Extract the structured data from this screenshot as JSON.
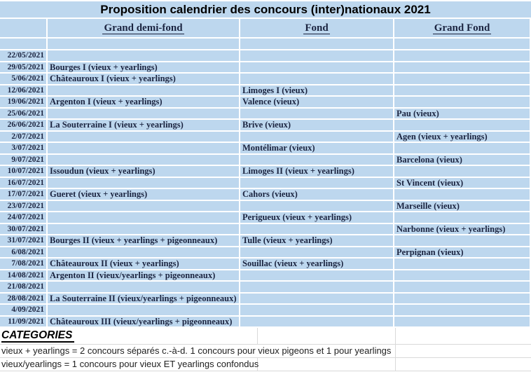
{
  "title": "Proposition calendrier des concours (inter)nationaux 2021",
  "columns": {
    "date": "",
    "demi_fond": "Grand demi-fond",
    "fond": "Fond ",
    "grand_fond": "Grand Fond"
  },
  "rows": [
    {
      "date": "22/05/2021",
      "demi_fond": "",
      "fond": "",
      "grand_fond": ""
    },
    {
      "date": "29/05/2021",
      "demi_fond": "Bourges I (vieux + yearlings)",
      "fond": "",
      "grand_fond": ""
    },
    {
      "date": "5/06/2021",
      "demi_fond": "Châteauroux I (vieux + yearlings)",
      "fond": "",
      "grand_fond": ""
    },
    {
      "date": "12/06/2021",
      "demi_fond": "",
      "fond": "Limoges I (vieux)",
      "grand_fond": ""
    },
    {
      "date": "19/06/2021",
      "demi_fond": "Argenton I (vieux + yearlings)",
      "fond": "Valence (vieux)",
      "grand_fond": ""
    },
    {
      "date": "25/06/2021",
      "demi_fond": "",
      "fond": "",
      "grand_fond": "Pau (vieux)"
    },
    {
      "date": "26/06/2021",
      "demi_fond": "La Souterraine I (vieux + yearlings)",
      "fond": "Brive (vieux)",
      "grand_fond": ""
    },
    {
      "date": "2/07/2021",
      "demi_fond": "",
      "fond": "",
      "grand_fond": "Agen (vieux + yearlings)"
    },
    {
      "date": "3/07/2021",
      "demi_fond": "",
      "fond": "Montélimar (vieux)",
      "grand_fond": ""
    },
    {
      "date": "9/07/2021",
      "demi_fond": "",
      "fond": "",
      "grand_fond": "Barcelona (vieux)"
    },
    {
      "date": "10/07/2021",
      "demi_fond": "Issoudun (vieux + yearlings)",
      "fond": "Limoges II (vieux + yearlings)",
      "grand_fond": ""
    },
    {
      "date": "16/07/2021",
      "demi_fond": "",
      "fond": "",
      "grand_fond": "St Vincent (vieux)"
    },
    {
      "date": "17/07/2021",
      "demi_fond": "Gueret (vieux + yearlings)",
      "fond": "Cahors (vieux)",
      "grand_fond": ""
    },
    {
      "date": "23/07/2021",
      "demi_fond": "",
      "fond": "",
      "grand_fond": "Marseille (vieux)"
    },
    {
      "date": "24/07/2021",
      "demi_fond": "",
      "fond": "Perigueux (vieux + yearlings)",
      "grand_fond": ""
    },
    {
      "date": "30/07/2021",
      "demi_fond": "",
      "fond": "",
      "grand_fond": "Narbonne (vieux + yearlings)"
    },
    {
      "date": "31/07/2021",
      "demi_fond": "Bourges II (vieux + yearlings + pigeonneaux)",
      "fond": "Tulle (vieux + yearlings)",
      "grand_fond": ""
    },
    {
      "date": "6/08/2021",
      "demi_fond": "",
      "fond": "",
      "grand_fond": "Perpignan (vieux)"
    },
    {
      "date": "7/08/2021",
      "demi_fond": "Châteauroux II (vieux + yearlings)",
      "fond": "Souillac (vieux + yearlings)",
      "grand_fond": ""
    },
    {
      "date": "14/08/2021",
      "demi_fond": "Argenton II (vieux/yearlings + pigeonneaux)",
      "fond": "",
      "grand_fond": ""
    },
    {
      "date": "21/08/2021",
      "demi_fond": "",
      "fond": "",
      "grand_fond": ""
    },
    {
      "date": "28/08/2021",
      "demi_fond": "La Souterraine II (vieux/yearlings + pigeonneaux)",
      "fond": "",
      "grand_fond": ""
    },
    {
      "date": "4/09/2021",
      "demi_fond": "",
      "fond": "",
      "grand_fond": ""
    },
    {
      "date": "11/09/2021",
      "demi_fond": "Châteauroux III (vieux/yearlings + pigeonneaux)",
      "fond": "",
      "grand_fond": ""
    }
  ],
  "categories": {
    "heading": "CATEGORIES",
    "notes": [
      "vieux + yearlings = 2 concours séparés c.-à-d. 1 concours pour vieux pigeons et 1 pour yearlings",
      "vieux/yearlings = 1 concours pour vieux ET yearlings confondus"
    ]
  },
  "colors": {
    "cell_blue": "#BDD7EE",
    "gridline_white": "#FFFFFF",
    "gridline_gray": "#D9D9D9",
    "text_dark": "#1B2440",
    "title_text": "#000000"
  }
}
